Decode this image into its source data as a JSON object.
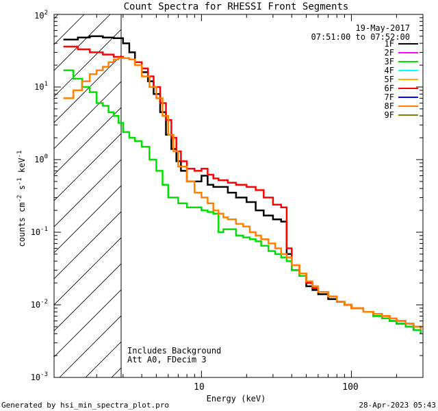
{
  "chart_data": {
    "type": "line",
    "title": "Count Spectra for RHESSI Front Segments",
    "xlabel": "Energy (keV)",
    "ylabel": "counts cm",
    "ylabel_parts": [
      "counts cm",
      "-2",
      " s",
      "-1",
      " keV",
      "-1"
    ],
    "xscale": "log",
    "yscale": "log",
    "xlim": [
      1.04,
      300
    ],
    "ylim": [
      0.001,
      100
    ],
    "x_ticks": [
      {
        "value": 10,
        "label": "10"
      },
      {
        "value": 100,
        "label": "100"
      }
    ],
    "y_ticks": [
      {
        "value": 0.001,
        "base": "10",
        "exp": "-3"
      },
      {
        "value": 0.01,
        "base": "10",
        "exp": "-2"
      },
      {
        "value": 0.1,
        "base": "10",
        "exp": "-1"
      },
      {
        "value": 1,
        "base": "10",
        "exp": "0"
      },
      {
        "value": 10,
        "base": "10",
        "exp": "1"
      },
      {
        "value": 100,
        "base": "10",
        "exp": "2"
      }
    ],
    "hatched_region": {
      "x_range": [
        1.04,
        3.0
      ],
      "description": "attenuator/background cutoff"
    },
    "legend_header": [
      "19-May-2017",
      "07:51:00 to 07:52:00"
    ],
    "annotations": [
      "Includes Background",
      "Att A0, FDecim 3"
    ],
    "series": [
      {
        "name": "1F",
        "color": "#000000",
        "x": [
          1.2,
          1.5,
          1.8,
          2.2,
          2.6,
          3.0,
          3.3,
          3.6,
          4.0,
          4.4,
          4.8,
          5.3,
          5.8,
          6.3,
          6.8,
          7.3,
          8.0,
          9.0,
          10.0,
          11.0,
          12.0,
          13.0,
          15.0,
          17.0,
          20.0,
          23.0,
          26.0,
          30.0,
          34.0,
          37.0,
          40.0,
          45.0,
          50.0,
          55.0,
          60.0,
          70.0,
          80.0,
          90.0,
          100.0,
          120.0,
          140.0,
          160.0,
          180.0,
          200.0,
          230.0,
          260.0,
          290.0
        ],
        "y": [
          45,
          48,
          50,
          48,
          47,
          40,
          30,
          22,
          16,
          12,
          8,
          4.5,
          2.2,
          1.4,
          0.95,
          0.7,
          0.5,
          0.5,
          0.6,
          0.45,
          0.42,
          0.42,
          0.35,
          0.3,
          0.26,
          0.2,
          0.17,
          0.15,
          0.14,
          0.05,
          0.03,
          0.025,
          0.018,
          0.016,
          0.014,
          0.012,
          0.011,
          0.01,
          0.009,
          0.008,
          0.007,
          0.0065,
          0.006,
          0.0055,
          0.005,
          0.0045,
          0.004
        ]
      },
      {
        "name": "2F",
        "color": "#ff00ff",
        "x": [],
        "y": []
      },
      {
        "name": "3F",
        "color": "#00e000",
        "x": [
          1.2,
          1.4,
          1.6,
          1.8,
          2.0,
          2.2,
          2.4,
          2.6,
          2.8,
          3.0,
          3.3,
          3.6,
          4.0,
          4.5,
          5.0,
          5.5,
          6.0,
          6.5,
          7.0,
          8.0,
          9.0,
          10.0,
          11.0,
          12.0,
          13.0,
          14.0,
          15.0,
          17.0,
          19.0,
          21.0,
          23.0,
          25.0,
          28.0,
          31.0,
          34.0,
          37.0,
          40.0,
          45.0,
          50.0,
          55.0,
          60.0,
          70.0,
          80.0,
          90.0,
          100.0,
          120.0,
          140.0,
          160.0,
          180.0,
          200.0,
          230.0,
          260.0,
          290.0
        ],
        "y": [
          17,
          13,
          10,
          8.5,
          6,
          5.5,
          4.5,
          4,
          3.2,
          2.4,
          2,
          1.8,
          1.5,
          1.0,
          0.7,
          0.45,
          0.3,
          0.3,
          0.25,
          0.22,
          0.22,
          0.2,
          0.19,
          0.18,
          0.1,
          0.11,
          0.11,
          0.09,
          0.085,
          0.08,
          0.075,
          0.065,
          0.055,
          0.05,
          0.045,
          0.04,
          0.03,
          0.025,
          0.02,
          0.017,
          0.015,
          0.013,
          0.011,
          0.01,
          0.009,
          0.008,
          0.007,
          0.0065,
          0.006,
          0.0055,
          0.005,
          0.0045,
          0.004
        ]
      },
      {
        "name": "4F",
        "color": "#00ffff",
        "x": [],
        "y": []
      },
      {
        "name": "5F",
        "color": "#ffb000",
        "x": [],
        "y": []
      },
      {
        "name": "6F",
        "color": "#ff0000",
        "x": [
          1.2,
          1.5,
          1.8,
          2.2,
          2.6,
          3.0,
          3.3,
          3.6,
          4.0,
          4.4,
          4.8,
          5.3,
          5.8,
          6.3,
          6.8,
          7.3,
          8.0,
          9.0,
          10.0,
          11.0,
          12.0,
          13.0,
          15.0,
          17.0,
          20.0,
          23.0,
          26.0,
          30.0,
          34.0,
          37.0,
          40.0,
          45.0,
          50.0,
          55.0,
          60.0,
          70.0,
          80.0,
          90.0,
          100.0,
          120.0,
          140.0,
          160.0,
          180.0,
          200.0,
          230.0,
          260.0,
          290.0
        ],
        "y": [
          36,
          33,
          30,
          28,
          26,
          25,
          24,
          22,
          18,
          14,
          10,
          6,
          3.5,
          2.0,
          1.3,
          0.95,
          0.75,
          0.7,
          0.75,
          0.62,
          0.55,
          0.52,
          0.48,
          0.45,
          0.42,
          0.38,
          0.3,
          0.24,
          0.22,
          0.06,
          0.035,
          0.027,
          0.02,
          0.017,
          0.015,
          0.013,
          0.011,
          0.01,
          0.009,
          0.008,
          0.0075,
          0.007,
          0.0065,
          0.006,
          0.0055,
          0.005,
          0.0045
        ]
      },
      {
        "name": "7F",
        "color": "#0000ff",
        "x": [],
        "y": []
      },
      {
        "name": "8F",
        "color": "#ff8000",
        "x": [
          1.2,
          1.4,
          1.6,
          1.8,
          2.0,
          2.2,
          2.4,
          2.6,
          2.8,
          3.0,
          3.3,
          3.6,
          4.0,
          4.5,
          5.0,
          5.5,
          6.0,
          6.5,
          7.0,
          8.0,
          9.0,
          10.0,
          11.0,
          12.0,
          13.0,
          14.0,
          15.0,
          17.0,
          19.0,
          21.0,
          23.0,
          25.0,
          28.0,
          31.0,
          34.0,
          37.0,
          40.0,
          45.0,
          50.0,
          55.0,
          60.0,
          70.0,
          80.0,
          90.0,
          100.0,
          120.0,
          140.0,
          160.0,
          180.0,
          200.0,
          230.0,
          260.0,
          290.0
        ],
        "y": [
          7,
          9,
          12,
          15,
          17,
          19,
          22,
          24,
          25,
          25,
          24,
          20,
          14,
          10,
          7,
          4,
          2.2,
          1.3,
          0.8,
          0.5,
          0.35,
          0.3,
          0.25,
          0.2,
          0.18,
          0.16,
          0.15,
          0.13,
          0.12,
          0.1,
          0.09,
          0.08,
          0.07,
          0.06,
          0.05,
          0.045,
          0.035,
          0.027,
          0.021,
          0.018,
          0.015,
          0.013,
          0.011,
          0.01,
          0.009,
          0.008,
          0.0075,
          0.007,
          0.0065,
          0.006,
          0.0055,
          0.005,
          0.0045
        ]
      },
      {
        "name": "9F",
        "color": "#808000",
        "x": [],
        "y": []
      }
    ]
  },
  "footer": {
    "left": "Generated by hsi_min_spectra_plot.pro",
    "right": "28-Apr-2023 05:43"
  }
}
